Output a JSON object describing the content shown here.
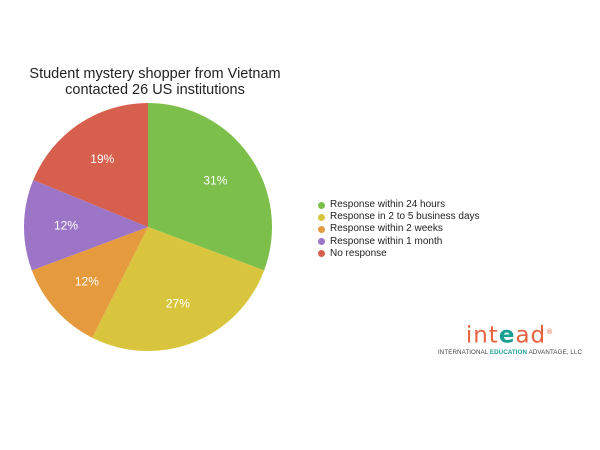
{
  "chart_data": {
    "type": "pie",
    "title_lines": [
      "Student mystery shopper from Vietnam",
      "contacted 26 US institutions"
    ],
    "slices": [
      {
        "name": "Response within 24 hours",
        "value": 31,
        "label": "31%",
        "color": "#7dbf4b"
      },
      {
        "name": "Response in 2 to 5 business days",
        "value": 27,
        "label": "27%",
        "color": "#d9c53d"
      },
      {
        "name": "Response within 2 weeks",
        "value": 12,
        "label": "12%",
        "color": "#e59a3d"
      },
      {
        "name": "Response within 1 month",
        "value": 12,
        "label": "12%",
        "color": "#9c75c6"
      },
      {
        "name": "No response",
        "value": 19,
        "label": "19%",
        "color": "#d6604d"
      }
    ],
    "legend_position": "right"
  },
  "logo": {
    "word_part1": "int",
    "word_part2": "e",
    "word_part3": "ad",
    "mark": "®",
    "tagline_part1": "INTERNATIONAL ",
    "tagline_part2": "EDUCATION",
    "tagline_part3": " ADVANTAGE, LLC"
  }
}
